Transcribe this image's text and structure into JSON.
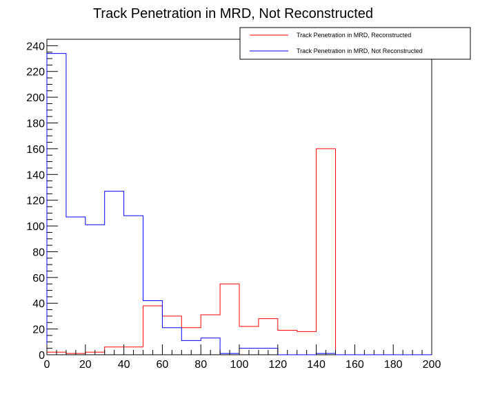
{
  "chart_data": {
    "type": "histogram",
    "title": "Track Penetration in MRD, Not Reconstructed",
    "xlabel": "",
    "ylabel": "",
    "xlim": [
      0,
      200
    ],
    "ylim": [
      0,
      245
    ],
    "x_ticks": [
      0,
      20,
      40,
      60,
      80,
      100,
      120,
      140,
      160,
      180,
      200
    ],
    "y_ticks": [
      0,
      20,
      40,
      60,
      80,
      100,
      120,
      140,
      160,
      180,
      200,
      220,
      240
    ],
    "bin_edges": [
      0,
      10,
      20,
      30,
      40,
      50,
      60,
      70,
      80,
      90,
      100,
      110,
      120,
      130,
      140,
      150,
      160,
      170,
      180,
      190,
      200
    ],
    "grid": false,
    "legend_position": "top-right",
    "series": [
      {
        "name": "Track Penetration in MRD, Reconstructed",
        "color": "#ff0000",
        "values": [
          2,
          1,
          2,
          6,
          6,
          38,
          30,
          21,
          31,
          55,
          22,
          28,
          19,
          18,
          160,
          0,
          0,
          0,
          0,
          0
        ]
      },
      {
        "name": "Track Penetration in MRD, Not Reconstructed",
        "color": "#0000ff",
        "values": [
          234,
          107,
          101,
          127,
          108,
          42,
          21,
          11,
          13,
          1,
          5,
          5,
          0,
          0,
          1,
          0,
          0,
          0,
          0,
          0
        ]
      }
    ]
  }
}
